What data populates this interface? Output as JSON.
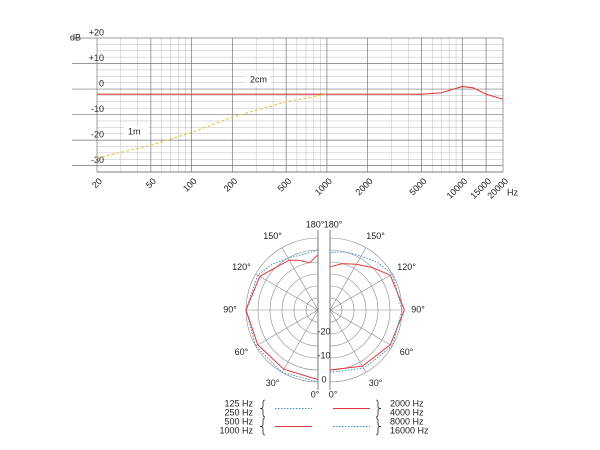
{
  "chart_data": [
    {
      "type": "line",
      "xscale": "log",
      "ylabel": "dB",
      "xlabel": "Hz",
      "x": [
        20,
        50,
        100,
        200,
        500,
        1000,
        2000,
        5000,
        7000,
        10000,
        12000,
        15000,
        20000
      ],
      "series": [
        {
          "name": "2cm",
          "color": "#e03a3a",
          "style": "solid",
          "values": [
            -2,
            -2,
            -2,
            -2,
            -2,
            -2,
            -2,
            -2,
            -1.5,
            1,
            0.5,
            -2,
            -4
          ]
        },
        {
          "name": "1m",
          "color": "#e8c84a",
          "style": "dashed",
          "values": [
            -27,
            -22,
            -17,
            -11,
            -5,
            -2,
            null,
            null,
            null,
            null,
            null,
            null,
            null
          ]
        }
      ],
      "xlim": [
        20,
        20000
      ],
      "xticks": [
        20,
        50,
        100,
        200,
        500,
        1000,
        2000,
        5000,
        10000,
        15000,
        20000
      ],
      "minor_xticks": [
        30,
        40,
        60,
        70,
        80,
        90,
        300,
        400,
        600,
        700,
        800,
        900,
        3000,
        4000,
        6000,
        7000,
        8000,
        9000
      ],
      "ylim": [
        -32.5,
        20
      ],
      "yticks": [
        {
          "value": 20,
          "label": "+20"
        },
        {
          "value": 10,
          "label": "+10"
        },
        0,
        -10,
        -20,
        -30
      ],
      "minor_yticks": [
        17.5,
        15,
        12.5,
        7.5,
        5,
        2.5,
        -2.5,
        -5,
        -7.5,
        -12.5,
        -15,
        -17.5,
        -22.5,
        -25,
        -27.5
      ],
      "grid": true
    },
    {
      "type": "polar",
      "rlim": [
        -30,
        0
      ],
      "rticks": [
        -20,
        -10,
        0
      ],
      "minor_rticks": [
        -30,
        -25,
        -15,
        -5
      ],
      "angle_ticks": [
        {
          "value": 0,
          "label": "0°"
        },
        {
          "value": 30,
          "label": "30°"
        },
        {
          "value": 60,
          "label": "60°"
        },
        {
          "value": 90,
          "label": "90°"
        },
        {
          "value": 120,
          "label": "120°"
        },
        {
          "value": 150,
          "label": "150°"
        },
        {
          "value": 180,
          "label": "180°"
        }
      ],
      "series": [
        {
          "names": [
            "125 Hz",
            "250 Hz"
          ],
          "side": "left",
          "color": "#3a90d0",
          "style": "dotted",
          "theta": [
            0,
            30,
            60,
            90,
            120,
            135,
            150,
            165,
            180
          ],
          "values": [
            0,
            0,
            0,
            0,
            -1,
            -3,
            -5,
            -6,
            -5
          ]
        },
        {
          "names": [
            "500 Hz",
            "1000 Hz"
          ],
          "side": "left",
          "color": "#e03a3a",
          "style": "solid",
          "theta": [
            0,
            30,
            60,
            90,
            120,
            135,
            150,
            160,
            170,
            180
          ],
          "values": [
            -1,
            -1.5,
            -1,
            0,
            -2,
            -5,
            -6,
            -8,
            -10,
            -7
          ]
        },
        {
          "names": [
            "2000 Hz",
            "4000 Hz"
          ],
          "side": "right",
          "color": "#e03a3a",
          "style": "solid",
          "theta": [
            0,
            30,
            60,
            90,
            120,
            135,
            150,
            165,
            180
          ],
          "values": [
            -5,
            -3,
            -1,
            1,
            -1,
            -5,
            -8,
            -10,
            -12
          ]
        },
        {
          "names": [
            "8000 Hz",
            "16000 Hz"
          ],
          "side": "right",
          "color": "#3a90d0",
          "style": "dotted",
          "theta": [
            0,
            30,
            60,
            90,
            120,
            135,
            150,
            165,
            180
          ],
          "values": [
            -4,
            -2,
            0,
            0,
            0,
            -2,
            -4,
            -5,
            -6
          ]
        }
      ]
    }
  ]
}
